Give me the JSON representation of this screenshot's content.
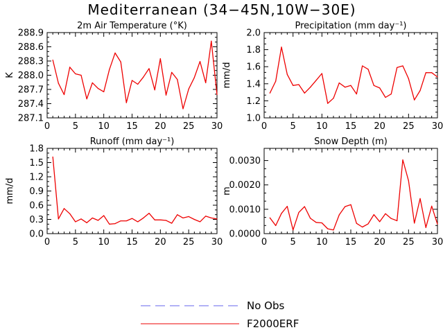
{
  "figure": {
    "title": "Mediterranean (34−45N,10W−30E)"
  },
  "chart_data": [
    {
      "type": "line",
      "title": "2m Air Temperature (°K)",
      "ylabel": "K",
      "xlabel": "",
      "xlim": [
        0,
        30
      ],
      "ylim": [
        287.1,
        288.9
      ],
      "xticks": [
        0,
        5,
        10,
        15,
        20,
        25,
        30
      ],
      "yticks": [
        "287.1",
        "287.4",
        "287.7",
        "288.0",
        "288.3",
        "288.6",
        "288.9"
      ],
      "x": [
        1,
        2,
        3,
        4,
        5,
        6,
        7,
        8,
        9,
        10,
        11,
        12,
        13,
        14,
        15,
        16,
        17,
        18,
        19,
        20,
        21,
        22,
        23,
        24,
        25,
        26,
        27,
        28,
        29,
        30
      ],
      "series": [
        {
          "name": "F2000ERF",
          "color": "#ee0000",
          "values": [
            288.32,
            287.83,
            287.59,
            288.17,
            288.03,
            288.0,
            287.5,
            287.84,
            287.72,
            287.65,
            288.12,
            288.47,
            288.28,
            287.42,
            287.89,
            287.81,
            287.96,
            288.14,
            287.69,
            288.35,
            287.58,
            288.06,
            287.91,
            287.29,
            287.71,
            287.95,
            288.29,
            287.84,
            288.72,
            287.59
          ]
        }
      ]
    },
    {
      "type": "line",
      "title": "Precipitation (mm day⁻¹)",
      "ylabel": "mm/d",
      "xlabel": "",
      "xlim": [
        0,
        30
      ],
      "ylim": [
        1.0,
        2.0
      ],
      "xticks": [
        0,
        5,
        10,
        15,
        20,
        25,
        30
      ],
      "yticks": [
        "1.0",
        "1.2",
        "1.4",
        "1.6",
        "1.8",
        "2.0"
      ],
      "x": [
        1,
        2,
        3,
        4,
        5,
        6,
        7,
        8,
        9,
        10,
        11,
        12,
        13,
        14,
        15,
        16,
        17,
        18,
        19,
        20,
        21,
        22,
        23,
        24,
        25,
        26,
        27,
        28,
        29,
        30
      ],
      "series": [
        {
          "name": "F2000ERF",
          "color": "#ee0000",
          "values": [
            1.29,
            1.43,
            1.83,
            1.51,
            1.38,
            1.39,
            1.29,
            1.36,
            1.44,
            1.52,
            1.17,
            1.23,
            1.41,
            1.36,
            1.38,
            1.28,
            1.61,
            1.57,
            1.38,
            1.35,
            1.24,
            1.28,
            1.59,
            1.61,
            1.46,
            1.21,
            1.32,
            1.53,
            1.53,
            1.48
          ]
        }
      ]
    },
    {
      "type": "line",
      "title": "Runoff (mm day⁻¹)",
      "ylabel": "mm/d",
      "xlabel": "",
      "xlim": [
        0,
        30
      ],
      "ylim": [
        0.0,
        1.8
      ],
      "xticks": [
        0,
        5,
        10,
        15,
        20,
        25,
        30
      ],
      "yticks": [
        "0.0",
        "0.3",
        "0.6",
        "0.9",
        "1.2",
        "1.5",
        "1.8"
      ],
      "x": [
        1,
        2,
        3,
        4,
        5,
        6,
        7,
        8,
        9,
        10,
        11,
        12,
        13,
        14,
        15,
        16,
        17,
        18,
        19,
        20,
        21,
        22,
        23,
        24,
        25,
        26,
        27,
        28,
        29,
        30
      ],
      "series": [
        {
          "name": "F2000ERF",
          "color": "#ee0000",
          "values": [
            1.62,
            0.31,
            0.53,
            0.42,
            0.25,
            0.31,
            0.23,
            0.33,
            0.28,
            0.38,
            0.2,
            0.21,
            0.27,
            0.27,
            0.32,
            0.25,
            0.33,
            0.43,
            0.29,
            0.29,
            0.28,
            0.22,
            0.4,
            0.33,
            0.36,
            0.3,
            0.25,
            0.37,
            0.33,
            0.31
          ]
        }
      ]
    },
    {
      "type": "line",
      "title": "Snow Depth (m)",
      "ylabel": "m",
      "xlabel": "",
      "xlim": [
        0,
        30
      ],
      "ylim": [
        0.0,
        0.0035
      ],
      "xticks": [
        0,
        5,
        10,
        15,
        20,
        25,
        30
      ],
      "yticks": [
        "0.0000",
        "0.0010",
        "0.0020",
        "0.0030"
      ],
      "ytick_values": [
        0.0,
        0.001,
        0.002,
        0.003
      ],
      "x": [
        1,
        2,
        3,
        4,
        5,
        6,
        7,
        8,
        9,
        10,
        11,
        12,
        13,
        14,
        15,
        16,
        17,
        18,
        19,
        20,
        21,
        22,
        23,
        24,
        25,
        26,
        27,
        28,
        29,
        30
      ],
      "series": [
        {
          "name": "F2000ERF",
          "color": "#ee0000",
          "values": [
            0.00065,
            0.00033,
            0.00083,
            0.00112,
            0.00015,
            0.00087,
            0.00111,
            0.00063,
            0.00046,
            0.00044,
            0.0002,
            0.00015,
            0.00077,
            0.00111,
            0.00119,
            0.00042,
            0.00027,
            0.0004,
            0.00078,
            0.00049,
            0.00082,
            0.00062,
            0.00053,
            0.00303,
            0.00217,
            0.00043,
            0.00144,
            0.00025,
            0.00113,
            0.00039
          ]
        }
      ]
    }
  ],
  "legend": [
    {
      "label": "No Obs",
      "color": "#6666ee",
      "style": "dashed"
    },
    {
      "label": "F2000ERF",
      "color": "#ee0000",
      "style": "solid"
    }
  ]
}
